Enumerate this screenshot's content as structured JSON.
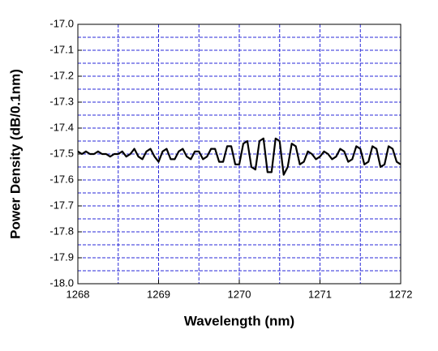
{
  "chart_data": {
    "type": "line",
    "xlabel": "Wavelength (nm)",
    "ylabel": "Power Density (dB/0.1nm)",
    "xlim": [
      1268,
      1272
    ],
    "ylim": [
      -18.0,
      -17.0
    ],
    "xticks": [
      1268,
      1269,
      1270,
      1271,
      1272
    ],
    "yticks": [
      {
        "value": -18.0,
        "label": "-18.0"
      },
      -17.9,
      -17.8,
      -17.7,
      -17.6,
      -17.5,
      -17.4,
      -17.3,
      -17.2,
      -17.1,
      {
        "value": -17.0,
        "label": "-17.0"
      }
    ],
    "xminorticks": [
      1268.5,
      1269.5,
      1270.5,
      1271.5
    ],
    "yminorticks": [
      -17.95,
      -17.85,
      -17.75,
      -17.65,
      -17.55,
      -17.45,
      -17.35,
      -17.25,
      -17.15,
      -17.05
    ],
    "grid": true,
    "grid_color": "#2a2ad8",
    "x": [
      1268.0,
      1268.05,
      1268.1,
      1268.15,
      1268.2,
      1268.25,
      1268.3,
      1268.35,
      1268.4,
      1268.45,
      1268.5,
      1268.55,
      1268.6,
      1268.65,
      1268.7,
      1268.75,
      1268.8,
      1268.85,
      1268.9,
      1268.95,
      1269.0,
      1269.05,
      1269.1,
      1269.15,
      1269.2,
      1269.25,
      1269.3,
      1269.35,
      1269.4,
      1269.45,
      1269.5,
      1269.55,
      1269.6,
      1269.65,
      1269.7,
      1269.75,
      1269.8,
      1269.85,
      1269.9,
      1269.95,
      1270.0,
      1270.05,
      1270.1,
      1270.15,
      1270.2,
      1270.25,
      1270.3,
      1270.35,
      1270.4,
      1270.45,
      1270.5,
      1270.55,
      1270.6,
      1270.65,
      1270.7,
      1270.75,
      1270.8,
      1270.85,
      1270.9,
      1270.95,
      1271.0,
      1271.05,
      1271.1,
      1271.15,
      1271.2,
      1271.25,
      1271.3,
      1271.35,
      1271.4,
      1271.45,
      1271.5,
      1271.55,
      1271.6,
      1271.65,
      1271.7,
      1271.75,
      1271.8,
      1271.85,
      1271.9,
      1271.95,
      1272.0
    ],
    "series": [
      {
        "color": "#000000",
        "values": [
          -17.49,
          -17.5,
          -17.49,
          -17.5,
          -17.5,
          -17.49,
          -17.5,
          -17.5,
          -17.51,
          -17.5,
          -17.5,
          -17.49,
          -17.51,
          -17.5,
          -17.48,
          -17.51,
          -17.52,
          -17.49,
          -17.48,
          -17.51,
          -17.53,
          -17.49,
          -17.48,
          -17.52,
          -17.52,
          -17.49,
          -17.48,
          -17.51,
          -17.52,
          -17.49,
          -17.49,
          -17.52,
          -17.51,
          -17.48,
          -17.48,
          -17.53,
          -17.53,
          -17.47,
          -17.47,
          -17.54,
          -17.54,
          -17.46,
          -17.45,
          -17.55,
          -17.56,
          -17.45,
          -17.44,
          -17.57,
          -17.57,
          -17.44,
          -17.45,
          -17.58,
          -17.55,
          -17.46,
          -17.47,
          -17.54,
          -17.53,
          -17.49,
          -17.5,
          -17.52,
          -17.51,
          -17.49,
          -17.5,
          -17.52,
          -17.51,
          -17.48,
          -17.49,
          -17.53,
          -17.52,
          -17.47,
          -17.48,
          -17.54,
          -17.53,
          -17.47,
          -17.48,
          -17.55,
          -17.54,
          -17.47,
          -17.48,
          -17.53,
          -17.54
        ]
      }
    ]
  }
}
